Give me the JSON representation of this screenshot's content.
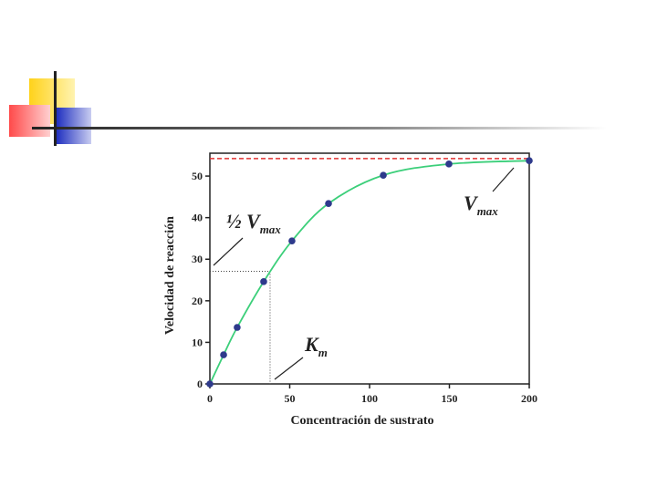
{
  "chart_data": {
    "type": "scatter",
    "x_label": "Concentración de sustrato",
    "y_label": "Velocidad de reacción",
    "x": [
      0,
      8.6,
      17.1,
      33.7,
      51.4,
      74.3,
      108.6,
      149.7,
      200
    ],
    "values": [
      0,
      7.0,
      13.6,
      24.6,
      34.4,
      43.4,
      50.2,
      52.9,
      53.7
    ],
    "color": "#2e3a8c",
    "line_color": "#3ccf7a",
    "xlim": [
      0,
      200
    ],
    "xticks": [
      0,
      50,
      100,
      150,
      200
    ],
    "ylim": [
      0,
      55.5
    ],
    "yticks": [
      0,
      10,
      20,
      30,
      40,
      50
    ],
    "vmax": 54.2,
    "half_vmax": 27.1,
    "km": 37.7,
    "annotations": [
      {
        "text": "½ V",
        "sub": "max"
      },
      {
        "text": "K",
        "sub": "m"
      },
      {
        "text": "V",
        "sub": "max"
      }
    ]
  }
}
